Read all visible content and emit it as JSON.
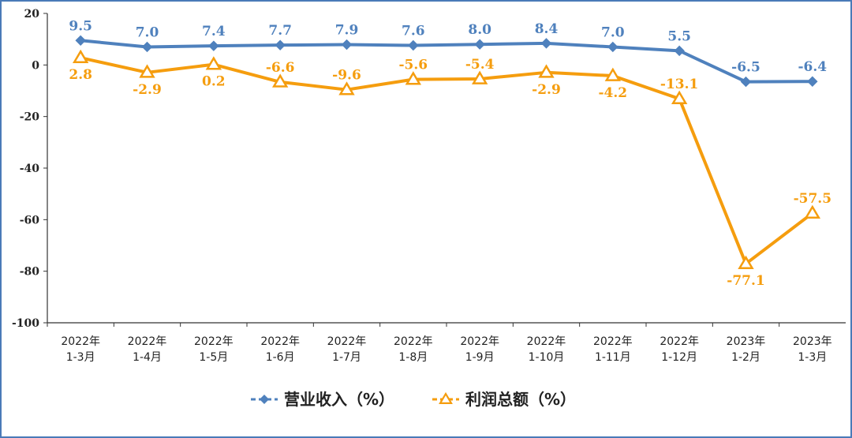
{
  "chart_data": {
    "type": "line",
    "title": "",
    "xlabel": "",
    "ylabel": "",
    "ylim": [
      -100,
      20
    ],
    "yticks": [
      20,
      0,
      -20,
      -40,
      -60,
      -80,
      -100
    ],
    "grid": false,
    "legend_position": "bottom-center",
    "categories": [
      [
        "2022年",
        "1-3月"
      ],
      [
        "2022年",
        "1-4月"
      ],
      [
        "2022年",
        "1-5月"
      ],
      [
        "2022年",
        "1-6月"
      ],
      [
        "2022年",
        "1-7月"
      ],
      [
        "2022年",
        "1-8月"
      ],
      [
        "2022年",
        "1-9月"
      ],
      [
        "2022年",
        "1-10月"
      ],
      [
        "2022年",
        "1-11月"
      ],
      [
        "2022年",
        "1-12月"
      ],
      [
        "2023年",
        "1-2月"
      ],
      [
        "2023年",
        "1-3月"
      ]
    ],
    "series": [
      {
        "name": "营业收入（%）",
        "color": "#4f81bd",
        "marker": "diamond",
        "values": [
          9.5,
          7.0,
          7.4,
          7.7,
          7.9,
          7.6,
          8.0,
          8.4,
          7.0,
          5.5,
          -6.5,
          -6.4
        ],
        "labels": [
          "9.5",
          "7.0",
          "7.4",
          "7.7",
          "7.9",
          "7.6",
          "8.0",
          "8.4",
          "7.0",
          "5.5",
          "-6.5",
          "-6.4"
        ],
        "label_pos": [
          "above",
          "above",
          "above",
          "above",
          "above",
          "above",
          "above",
          "above",
          "above",
          "above",
          "above",
          "above"
        ]
      },
      {
        "name": "利润总额（%）",
        "color": "#f59d0e",
        "marker": "triangle",
        "values": [
          2.8,
          -2.9,
          0.2,
          -6.6,
          -9.6,
          -5.6,
          -5.4,
          -2.9,
          -4.2,
          -13.1,
          -77.1,
          -57.5
        ],
        "labels": [
          "2.8",
          "-2.9",
          "0.2",
          "-6.6",
          "-9.6",
          "-5.6",
          "-5.4",
          "-2.9",
          "-4.2",
          "-13.1",
          "-77.1",
          "-57.5"
        ],
        "label_pos": [
          "below",
          "below",
          "below",
          "above",
          "above",
          "above",
          "above",
          "below",
          "below",
          "above",
          "below",
          "above"
        ]
      }
    ]
  }
}
